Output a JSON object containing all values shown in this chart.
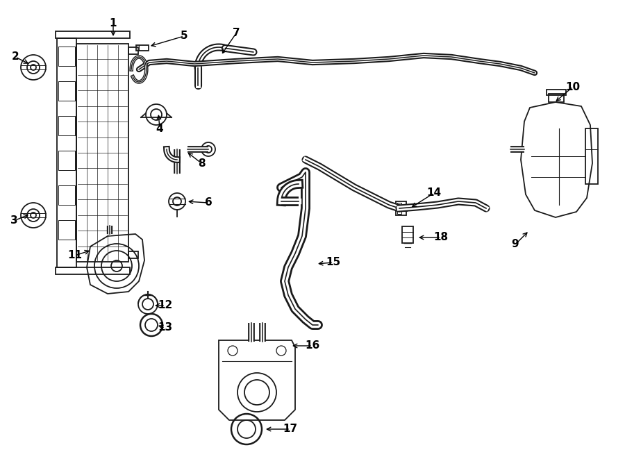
{
  "bg_color": "#ffffff",
  "line_color": "#1a1a1a",
  "lw": 1.3,
  "figsize": [
    9.0,
    6.61
  ],
  "dpi": 100,
  "xlim": [
    0,
    900
  ],
  "ylim": [
    661,
    0
  ]
}
